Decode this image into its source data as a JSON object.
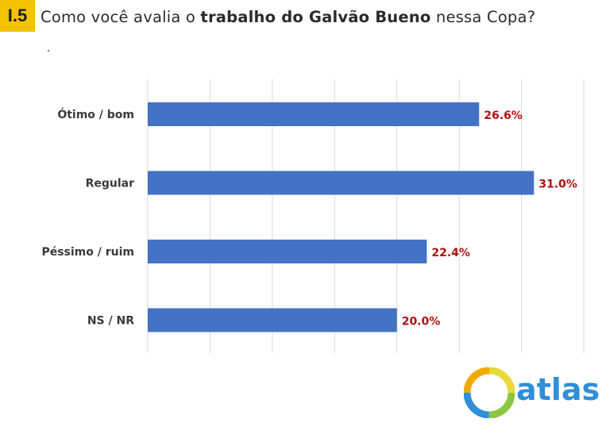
{
  "badge": "I.5",
  "title": {
    "prefix": "Como você avalia o ",
    "bold": "trabalho do Galvão Bueno",
    "suffix": " nessa Copa?"
  },
  "logo": {
    "text": "atlas",
    "colors": [
      "#e8d83a",
      "#8cc63f",
      "#2f8fd8",
      "#f2a900"
    ]
  },
  "colors": {
    "bar": "#4472c4",
    "value_label": "#b01010",
    "grid": "#d9d9d9",
    "badge": "#f2c300"
  },
  "chart_data": {
    "type": "bar",
    "orientation": "horizontal",
    "categories": [
      "Ótimo / bom",
      "Regular",
      "Péssimo / ruim",
      "NS / NR"
    ],
    "values": [
      26.6,
      31.0,
      22.4,
      20.0
    ],
    "value_labels": [
      "26.6%",
      "31.0%",
      "22.4%",
      "20.0%"
    ],
    "xlim": [
      0,
      35
    ],
    "grid": true,
    "grid_step": 5,
    "legend": "none"
  }
}
